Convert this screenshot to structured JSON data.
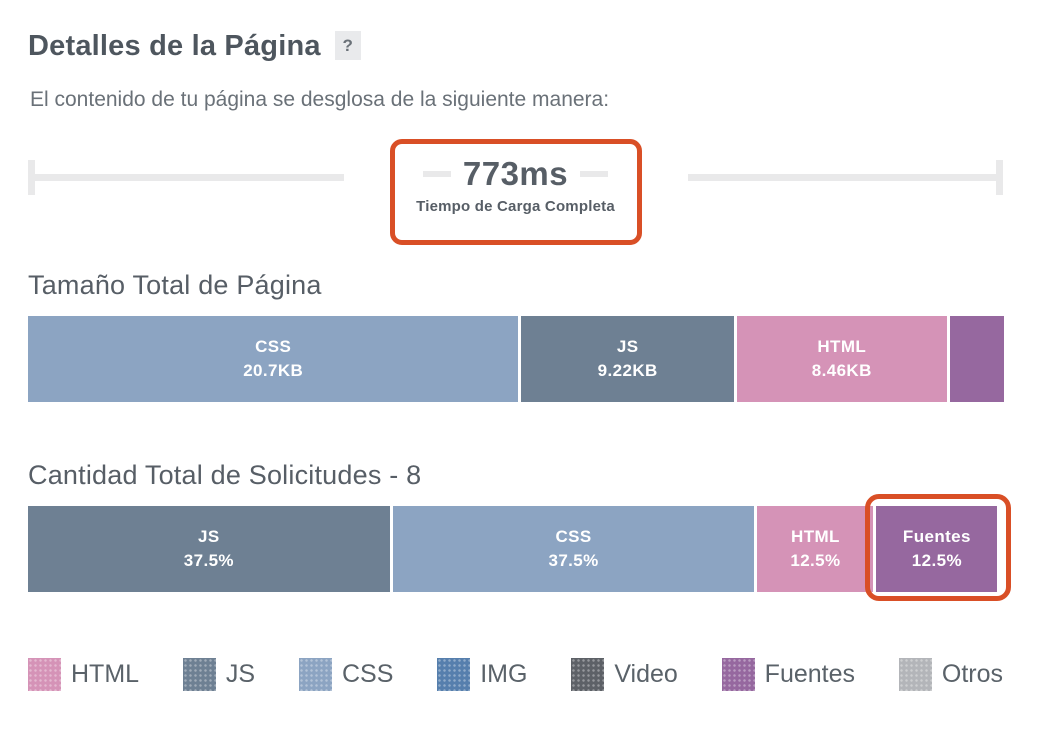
{
  "header": {
    "title": "Detalles de la Página",
    "help_badge": "?",
    "subtitle": "El contenido de tu página se desglosa de la siguiente manera:"
  },
  "load_time": {
    "value": "773ms",
    "caption": "Tiempo de Carga Completa"
  },
  "colors": {
    "annotation_orange": "#D94F26",
    "timeline_gray": "#E9E9EA",
    "heading_gray": "#575E66",
    "html_pink": "#D593B7",
    "js_slate": "#6E8093",
    "css_blue": "#8CA4C2",
    "img_blue": "#567FAD",
    "video_gray": "#5D6167",
    "fonts_purple": "#96689F",
    "other_gray": "#B3B5B9"
  },
  "chart_data": [
    {
      "type": "bar",
      "subtype": "horizontal-stacked",
      "title": "Tamaño Total de Página",
      "unit": "KB",
      "segments": [
        {
          "name": "CSS",
          "label": "CSS",
          "value_label": "20.7KB",
          "value_kb": 20.7,
          "width_pct": 50.3,
          "color": "#8CA4C2"
        },
        {
          "name": "JS",
          "label": "JS",
          "value_label": "9.22KB",
          "value_kb": 9.22,
          "width_pct": 21.8,
          "color": "#6E8093"
        },
        {
          "name": "HTML",
          "label": "HTML",
          "value_label": "8.46KB",
          "value_kb": 8.46,
          "width_pct": 21.5,
          "color": "#D593B7"
        },
        {
          "name": "Fuentes",
          "label": "",
          "value_label": "",
          "width_pct": 5.6,
          "color": "#96689F"
        }
      ]
    },
    {
      "type": "bar",
      "subtype": "horizontal-stacked",
      "title": "Cantidad Total de Solicitudes - 8",
      "total_requests": 8,
      "unit": "%",
      "segments": [
        {
          "name": "JS",
          "label": "JS",
          "value_label": "37.5%",
          "value_pct": 37.5,
          "width_pct": 37.1,
          "color": "#6E8093"
        },
        {
          "name": "CSS",
          "label": "CSS",
          "value_label": "37.5%",
          "value_pct": 37.5,
          "width_pct": 37.1,
          "color": "#8CA4C2"
        },
        {
          "name": "HTML",
          "label": "HTML",
          "value_label": "12.5%",
          "value_pct": 12.5,
          "width_pct": 11.9,
          "color": "#D593B7"
        },
        {
          "name": "Fuentes",
          "label": "Fuentes",
          "value_label": "12.5%",
          "value_pct": 12.5,
          "width_pct": 12.4,
          "color": "#96689F",
          "highlighted": true
        }
      ]
    }
  ],
  "legend": [
    {
      "label": "HTML",
      "color": "#D593B7"
    },
    {
      "label": "JS",
      "color": "#6E8093"
    },
    {
      "label": "CSS",
      "color": "#8CA4C2"
    },
    {
      "label": "IMG",
      "color": "#567FAD"
    },
    {
      "label": "Video",
      "color": "#5D6167"
    },
    {
      "label": "Fuentes",
      "color": "#96689F"
    },
    {
      "label": "Otros",
      "color": "#B3B5B9"
    }
  ]
}
